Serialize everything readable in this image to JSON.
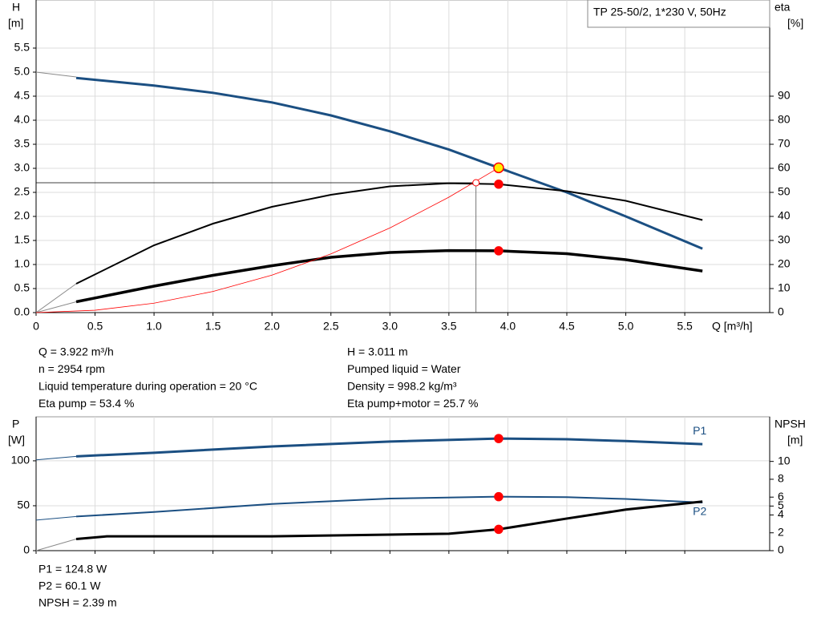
{
  "chart_data": [
    {
      "type": "line",
      "title": "TP 25-50/2, 1*230 V, 50Hz",
      "ylabel": "H",
      "yunit": "[m]",
      "y2label": "eta",
      "y2unit": "[%]",
      "xlabel": "Q [m³/h]",
      "xlim": [
        0,
        6.22
      ],
      "xticks": [
        0,
        0.5,
        {
          "value": 1,
          "label": "1.0"
        },
        1.5,
        {
          "value": 2,
          "label": "2.0"
        },
        2.5,
        {
          "value": 3,
          "label": "3.0"
        },
        3.5,
        {
          "value": 4,
          "label": "4.0"
        },
        4.5,
        {
          "value": 5,
          "label": "5.0"
        },
        5.5
      ],
      "show_xtick_labels": true,
      "ylim": [
        0,
        6.5
      ],
      "yticks": [
        {
          "value": 0,
          "label": "0.0"
        },
        0.5,
        {
          "value": 1,
          "label": "1.0"
        },
        1.5,
        {
          "value": 2,
          "label": "2.0"
        },
        2.5,
        {
          "value": 3,
          "label": "3.0"
        },
        3.5,
        {
          "value": 4,
          "label": "4.0"
        },
        4.5,
        {
          "value": 5,
          "label": "5.0"
        },
        5.5
      ],
      "y2lim": [
        0,
        130
      ],
      "y2ticks": [
        0,
        10,
        20,
        30,
        40,
        50,
        60,
        70,
        80,
        90
      ],
      "grid": true,
      "series": [
        {
          "x": [
            0,
            0.34
          ],
          "values": [
            5.0,
            4.9
          ],
          "color": "#8a8a8a",
          "width": 1
        },
        {
          "x": [
            0.34,
            1,
            1.5,
            2,
            2.5,
            3,
            3.5,
            3.922,
            4.5,
            5,
            5.65
          ],
          "values": [
            4.88,
            4.72,
            4.57,
            4.37,
            4.1,
            3.77,
            3.39,
            3.011,
            2.5,
            2.0,
            1.33
          ],
          "color": "#1b4f82",
          "width": 3
        },
        {
          "x": [
            0,
            0.34
          ],
          "values": [
            0,
            12
          ],
          "axis": "y2",
          "color": "#8a8a8a",
          "width": 1
        },
        {
          "x": [
            0.34,
            1,
            1.5,
            2,
            2.5,
            3,
            3.5,
            3.922,
            4.5,
            5,
            5.65
          ],
          "values": [
            12,
            28,
            37,
            44,
            49,
            52.5,
            53.8,
            53.4,
            50.5,
            46.5,
            38.5
          ],
          "axis": "y2",
          "color": "#000000",
          "width": 2
        },
        {
          "x": [
            0,
            0.34
          ],
          "values": [
            0,
            4.5
          ],
          "axis": "y2",
          "color": "#8a8a8a",
          "width": 1
        },
        {
          "x": [
            0.34,
            1,
            1.5,
            2,
            2.5,
            3,
            3.5,
            3.922,
            4.5,
            5,
            5.65
          ],
          "values": [
            4.5,
            11,
            15.5,
            19.5,
            23,
            25,
            25.8,
            25.7,
            24.5,
            22,
            17.3
          ],
          "axis": "y2",
          "color": "#000000",
          "width": 3.5
        },
        {
          "x": [
            0,
            0.5,
            1,
            1.5,
            2,
            2.5,
            3,
            3.5,
            3.922
          ],
          "values": [
            0,
            0.049,
            0.196,
            0.44,
            0.78,
            1.22,
            1.76,
            2.4,
            3.011
          ],
          "color": "#ff0000",
          "width": 0.8
        }
      ],
      "markers": [
        {
          "x": 3.922,
          "y": 3.011,
          "color": "#ffee00",
          "stroke": "#ff0000",
          "size": 6
        },
        {
          "x": 3.922,
          "y": 53.4,
          "axis": "y2",
          "color": "#ff0000",
          "size": 5
        },
        {
          "x": 3.922,
          "y": 25.7,
          "axis": "y2",
          "color": "#ff0000",
          "size": 5
        }
      ],
      "crosshair": {
        "x": 3.73,
        "y": 2.7
      },
      "notes": [
        "Q = 3.922 m³/h",
        "n = 2954 rpm",
        "Liquid temperature during operation = 20 °C",
        "Eta pump = 53.4 %",
        "H = 3.011 m",
        "Pumped liquid = Water",
        "Density = 998.2 kg/m³",
        "Eta pump+motor = 25.7 %"
      ]
    },
    {
      "type": "line",
      "ylabel": "P",
      "yunit": "[W]",
      "y2label": "NPSH",
      "y2unit": "[m]",
      "xlim": [
        0,
        6.22
      ],
      "xticks": [
        0,
        0.5,
        1,
        1.5,
        2,
        2.5,
        3,
        3.5,
        4,
        4.5,
        5,
        5.5
      ],
      "show_xtick_labels": false,
      "ylim": [
        0,
        149
      ],
      "yticks": [
        0,
        50,
        100
      ],
      "y2lim": [
        0,
        15
      ],
      "y2ticks": [
        0,
        2,
        4,
        5,
        6,
        8,
        10
      ],
      "grid": true,
      "series": [
        {
          "x": [
            0,
            0.34
          ],
          "values": [
            101,
            105
          ],
          "color": "#1b4f82",
          "width": 1
        },
        {
          "name": "P1",
          "label_position": "above",
          "x": [
            0.34,
            1,
            2,
            3,
            3.922,
            4.5,
            5,
            5.65
          ],
          "values": [
            105,
            109,
            116,
            121.5,
            124.8,
            124,
            122,
            118.5
          ],
          "color": "#1b4f82",
          "width": 3
        },
        {
          "x": [
            0,
            0.34
          ],
          "values": [
            34,
            38
          ],
          "color": "#1b4f82",
          "width": 1
        },
        {
          "name": "P2",
          "label_position": "below",
          "x": [
            0.34,
            1,
            2,
            3,
            3.922,
            4.5,
            5,
            5.65
          ],
          "values": [
            38,
            43,
            52,
            58,
            60.1,
            59.5,
            57.5,
            53.5
          ],
          "color": "#1b4f82",
          "width": 2
        },
        {
          "x": [
            0,
            0.34
          ],
          "values": [
            0,
            1.3
          ],
          "axis": "y2",
          "color": "#8a8a8a",
          "width": 1
        },
        {
          "x": [
            0.34,
            0.6,
            1,
            2,
            3,
            3.5,
            3.922,
            4.5,
            5,
            5.65
          ],
          "values": [
            1.3,
            1.6,
            1.6,
            1.6,
            1.8,
            1.9,
            2.39,
            3.6,
            4.6,
            5.5
          ],
          "axis": "y2",
          "color": "#000000",
          "width": 3
        }
      ],
      "markers": [
        {
          "x": 3.922,
          "y": 124.8,
          "color": "#ff0000",
          "size": 5
        },
        {
          "x": 3.922,
          "y": 60.1,
          "color": "#ff0000",
          "size": 5
        },
        {
          "x": 3.922,
          "y": 2.39,
          "axis": "y2",
          "color": "#ff0000",
          "size": 5
        }
      ],
      "notes": [
        "P1 = 124.8 W",
        "P2 = 60.1 W",
        "NPSH = 2.39 m"
      ]
    }
  ]
}
